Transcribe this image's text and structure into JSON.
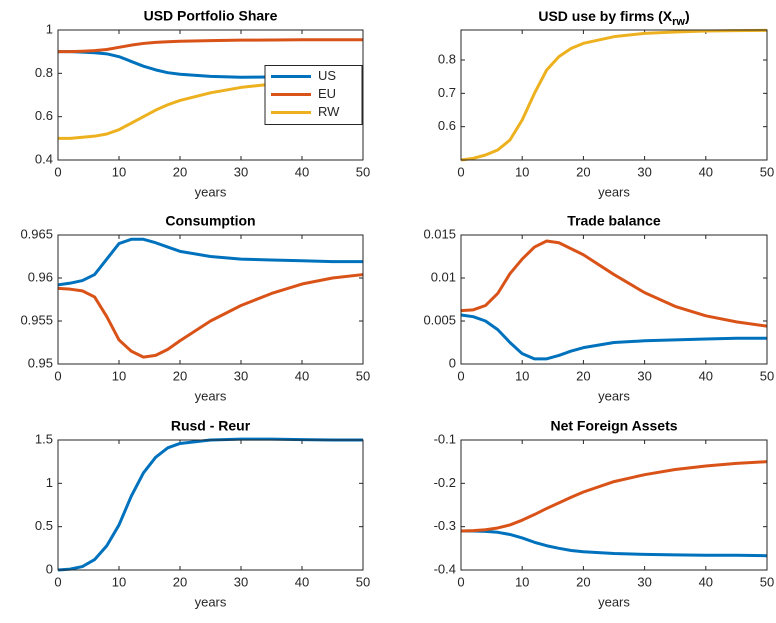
{
  "chart_data": [
    {
      "type": "line",
      "title": "USD Portfolio Share",
      "xlabel": "years",
      "x": [
        0,
        2,
        4,
        6,
        8,
        10,
        12,
        14,
        16,
        18,
        20,
        25,
        30,
        35,
        40,
        45,
        50
      ],
      "xlim": [
        0,
        50
      ],
      "xticks": [
        0,
        10,
        20,
        30,
        40,
        50
      ],
      "ylim": [
        0.4,
        1
      ],
      "yticks": [
        0.4,
        0.6,
        0.8,
        1
      ],
      "legend": "east",
      "series": [
        {
          "name": "US",
          "color": "#0072bd",
          "values": [
            0.9,
            0.9,
            0.898,
            0.895,
            0.89,
            0.877,
            0.855,
            0.833,
            0.816,
            0.803,
            0.796,
            0.786,
            0.782,
            0.783,
            0.785,
            0.787,
            0.79
          ]
        },
        {
          "name": "EU",
          "color": "#d95319",
          "values": [
            0.9,
            0.9,
            0.902,
            0.905,
            0.91,
            0.92,
            0.93,
            0.938,
            0.943,
            0.946,
            0.948,
            0.951,
            0.953,
            0.954,
            0.955,
            0.955,
            0.955
          ]
        },
        {
          "name": "RW",
          "color": "#edb120",
          "values": [
            0.5,
            0.5,
            0.505,
            0.51,
            0.52,
            0.54,
            0.57,
            0.6,
            0.63,
            0.655,
            0.675,
            0.71,
            0.735,
            0.75,
            0.758,
            0.764,
            0.768
          ]
        }
      ]
    },
    {
      "type": "line",
      "title": [
        "USD use by firms (X",
        "rw",
        ")"
      ],
      "xlabel": "years",
      "x": [
        0,
        2,
        4,
        6,
        8,
        10,
        12,
        14,
        16,
        18,
        20,
        25,
        30,
        35,
        40,
        45,
        50
      ],
      "xlim": [
        0,
        50
      ],
      "xticks": [
        0,
        10,
        20,
        30,
        40,
        50
      ],
      "ylim": [
        0.5,
        0.89
      ],
      "yticks": [
        0.6,
        0.7,
        0.8
      ],
      "series": [
        {
          "color": "#edb120",
          "values": [
            0.5,
            0.505,
            0.515,
            0.53,
            0.56,
            0.62,
            0.7,
            0.77,
            0.81,
            0.835,
            0.85,
            0.87,
            0.88,
            0.884,
            0.887,
            0.888,
            0.889
          ]
        }
      ]
    },
    {
      "type": "line",
      "title": "Consumption",
      "xlabel": "years",
      "x": [
        0,
        2,
        4,
        6,
        8,
        10,
        12,
        14,
        16,
        18,
        20,
        25,
        30,
        35,
        40,
        45,
        50
      ],
      "xlim": [
        0,
        50
      ],
      "xticks": [
        0,
        10,
        20,
        30,
        40,
        50
      ],
      "ylim": [
        0.95,
        0.965
      ],
      "yticks": [
        0.95,
        0.955,
        0.96,
        0.965
      ],
      "series": [
        {
          "color": "#0072bd",
          "values": [
            0.9592,
            0.9594,
            0.9597,
            0.9604,
            0.9622,
            0.964,
            0.9645,
            0.9645,
            0.9641,
            0.9636,
            0.9631,
            0.9625,
            0.9622,
            0.9621,
            0.962,
            0.9619,
            0.9619
          ]
        },
        {
          "color": "#d95319",
          "values": [
            0.9588,
            0.9587,
            0.9585,
            0.9578,
            0.9555,
            0.9528,
            0.9515,
            0.9508,
            0.951,
            0.9517,
            0.9527,
            0.955,
            0.9568,
            0.9582,
            0.9593,
            0.96,
            0.9604
          ]
        }
      ]
    },
    {
      "type": "line",
      "title": "Trade balance",
      "xlabel": "years",
      "x": [
        0,
        2,
        4,
        6,
        8,
        10,
        12,
        14,
        16,
        18,
        20,
        25,
        30,
        35,
        40,
        45,
        50
      ],
      "xlim": [
        0,
        50
      ],
      "xticks": [
        0,
        10,
        20,
        30,
        40,
        50
      ],
      "ylim": [
        0,
        0.015
      ],
      "yticks": [
        0,
        0.005,
        0.01,
        0.015
      ],
      "series": [
        {
          "color": "#0072bd",
          "values": [
            0.0057,
            0.0055,
            0.005,
            0.004,
            0.0025,
            0.0012,
            0.0006,
            0.0006,
            0.001,
            0.0015,
            0.0019,
            0.0025,
            0.0027,
            0.0028,
            0.0029,
            0.003,
            0.003
          ]
        },
        {
          "color": "#d95319",
          "values": [
            0.0062,
            0.0063,
            0.0068,
            0.0082,
            0.0105,
            0.0122,
            0.0136,
            0.0143,
            0.0141,
            0.0134,
            0.0127,
            0.0104,
            0.0083,
            0.0067,
            0.0056,
            0.0049,
            0.0044
          ]
        }
      ]
    },
    {
      "type": "line",
      "title": "Rusd - Reur",
      "xlabel": "years",
      "x": [
        0,
        2,
        4,
        6,
        8,
        10,
        12,
        14,
        16,
        18,
        20,
        25,
        30,
        35,
        40,
        45,
        50
      ],
      "xlim": [
        0,
        50
      ],
      "xticks": [
        0,
        10,
        20,
        30,
        40,
        50
      ],
      "ylim": [
        0,
        1.5
      ],
      "yticks": [
        0,
        0.5,
        1,
        1.5
      ],
      "series": [
        {
          "color": "#0072bd",
          "values": [
            0,
            0.01,
            0.04,
            0.12,
            0.28,
            0.52,
            0.85,
            1.12,
            1.3,
            1.41,
            1.46,
            1.5,
            1.51,
            1.51,
            1.505,
            1.5,
            1.5
          ]
        }
      ]
    },
    {
      "type": "line",
      "title": "Net Foreign Assets",
      "xlabel": "years",
      "x": [
        0,
        2,
        4,
        6,
        8,
        10,
        12,
        14,
        16,
        18,
        20,
        25,
        30,
        35,
        40,
        45,
        50
      ],
      "xlim": [
        0,
        50
      ],
      "xticks": [
        0,
        10,
        20,
        30,
        40,
        50
      ],
      "ylim": [
        -0.4,
        -0.1
      ],
      "yticks": [
        -0.4,
        -0.3,
        -0.2,
        -0.1
      ],
      "series": [
        {
          "color": "#0072bd",
          "values": [
            -0.31,
            -0.31,
            -0.311,
            -0.313,
            -0.318,
            -0.326,
            -0.336,
            -0.344,
            -0.35,
            -0.355,
            -0.358,
            -0.362,
            -0.364,
            -0.365,
            -0.366,
            -0.366,
            -0.367
          ]
        },
        {
          "color": "#d95319",
          "values": [
            -0.31,
            -0.309,
            -0.307,
            -0.303,
            -0.296,
            -0.285,
            -0.272,
            -0.258,
            -0.245,
            -0.232,
            -0.22,
            -0.196,
            -0.18,
            -0.168,
            -0.16,
            -0.154,
            -0.15
          ]
        }
      ]
    }
  ]
}
